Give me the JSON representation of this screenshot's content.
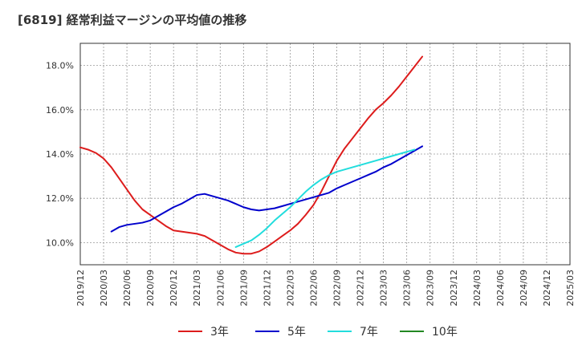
{
  "chart_data": {
    "type": "line",
    "title": "[6819]  経常利益マージンの平均値の推移",
    "xlabel": "",
    "ylabel": "",
    "x_ticks": [
      "2019/12",
      "2020/03",
      "2020/06",
      "2020/09",
      "2020/12",
      "2021/03",
      "2021/06",
      "2021/09",
      "2021/12",
      "2022/03",
      "2022/06",
      "2022/09",
      "2022/12",
      "2023/03",
      "2023/06",
      "2023/09",
      "2023/12",
      "2024/03",
      "2024/06",
      "2024/09",
      "2024/12",
      "2025/03"
    ],
    "y_ticks": [
      "10.0%",
      "12.0%",
      "14.0%",
      "16.0%",
      "18.0%"
    ],
    "y_tick_values": [
      10,
      12,
      14,
      16,
      18
    ],
    "ylim": [
      9.0,
      19.0
    ],
    "grid": true,
    "legend_position": "bottom",
    "series": [
      {
        "name": "3年",
        "color": "#dd1c1c",
        "start_index": 0,
        "values": [
          14.3,
          14.2,
          14.05,
          13.8,
          13.4,
          12.9,
          12.4,
          11.9,
          11.5,
          11.25,
          11.0,
          10.75,
          10.55,
          10.5,
          10.45,
          10.4,
          10.3,
          10.1,
          9.9,
          9.7,
          9.55,
          9.5,
          9.5,
          9.6,
          9.8,
          10.05,
          10.3,
          10.55,
          10.85,
          11.25,
          11.7,
          12.3,
          13.0,
          13.7,
          14.25,
          14.7,
          15.15,
          15.6,
          16.0,
          16.3,
          16.65,
          17.05,
          17.5,
          17.95,
          18.4
        ]
      },
      {
        "name": "5年",
        "color": "#0000cc",
        "start_index": 4,
        "values": [
          10.5,
          10.7,
          10.8,
          10.85,
          10.9,
          11.0,
          11.2,
          11.4,
          11.6,
          11.75,
          11.95,
          12.15,
          12.2,
          12.1,
          12.0,
          11.9,
          11.75,
          11.6,
          11.5,
          11.45,
          11.5,
          11.55,
          11.65,
          11.75,
          11.85,
          11.95,
          12.05,
          12.15,
          12.25,
          12.45,
          12.6,
          12.75,
          12.9,
          13.05,
          13.2,
          13.4,
          13.55,
          13.75,
          13.95,
          14.15,
          14.35
        ]
      },
      {
        "name": "7年",
        "color": "#22dddd",
        "start_index": 20,
        "values": [
          9.8,
          9.95,
          10.1,
          10.35,
          10.65,
          11.0,
          11.3,
          11.6,
          11.95,
          12.3,
          12.6,
          12.85,
          13.05,
          13.2,
          13.3,
          13.4,
          13.5,
          13.6,
          13.7,
          13.8,
          13.9,
          14.0,
          14.1,
          14.2
        ]
      },
      {
        "name": "10年",
        "color": "#228822",
        "start_index": 0,
        "values": []
      }
    ]
  }
}
